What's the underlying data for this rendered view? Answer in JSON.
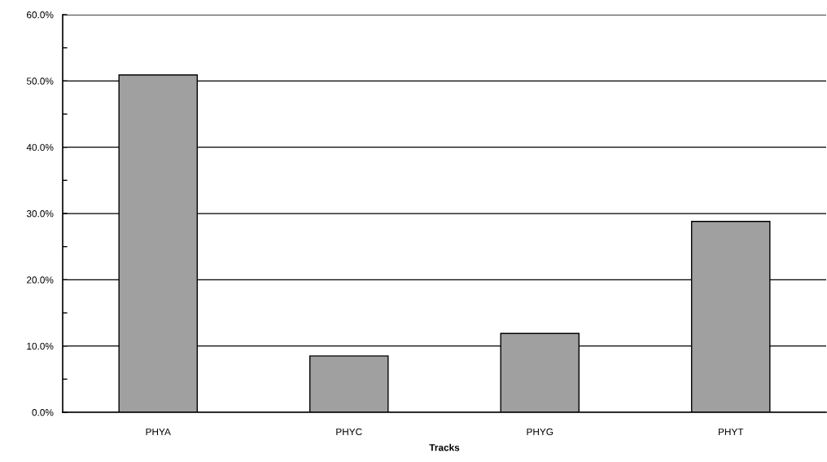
{
  "chart_data": {
    "type": "bar",
    "xlabel": "Tracks",
    "categories": [
      "PHYA",
      "PHYC",
      "PHYG",
      "PHYT"
    ],
    "values": [
      50.9,
      8.5,
      11.9,
      28.8
    ],
    "color": "#a0a0a0",
    "ylim": [
      0,
      60
    ],
    "yticks": [
      {
        "value": 0,
        "label": "0.0%"
      },
      {
        "value": 5,
        "label": null
      },
      {
        "value": 10,
        "label": "10.0%"
      },
      {
        "value": 15,
        "label": null
      },
      {
        "value": 20,
        "label": "20.0%"
      },
      {
        "value": 25,
        "label": null
      },
      {
        "value": 30,
        "label": "30.0%"
      },
      {
        "value": 35,
        "label": null
      },
      {
        "value": 40,
        "label": "40.0%"
      },
      {
        "value": 45,
        "label": null
      },
      {
        "value": 50,
        "label": "50.0%"
      },
      {
        "value": 55,
        "label": null
      },
      {
        "value": 60,
        "label": "60.0%"
      }
    ],
    "grid": "y",
    "legend": false
  }
}
